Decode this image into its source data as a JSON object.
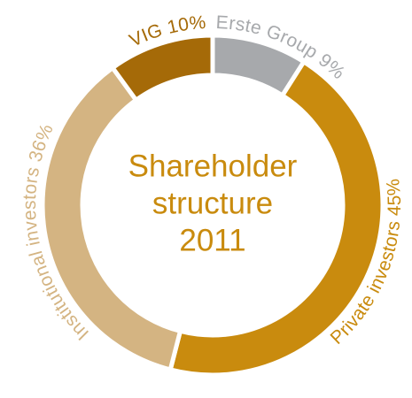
{
  "chart_data": {
    "type": "donut",
    "title_lines": [
      "Shareholder",
      "structure",
      "2011"
    ],
    "categories": [
      "Erste Group",
      "Private investors",
      "Institutional investors",
      "VIG"
    ],
    "values": [
      9,
      45,
      36,
      10
    ],
    "value_labels": [
      "9%",
      "45%",
      "36%",
      "10%"
    ],
    "colors": [
      "#a7a9ac",
      "#c98b0e",
      "#d4b482",
      "#a56a08"
    ]
  }
}
